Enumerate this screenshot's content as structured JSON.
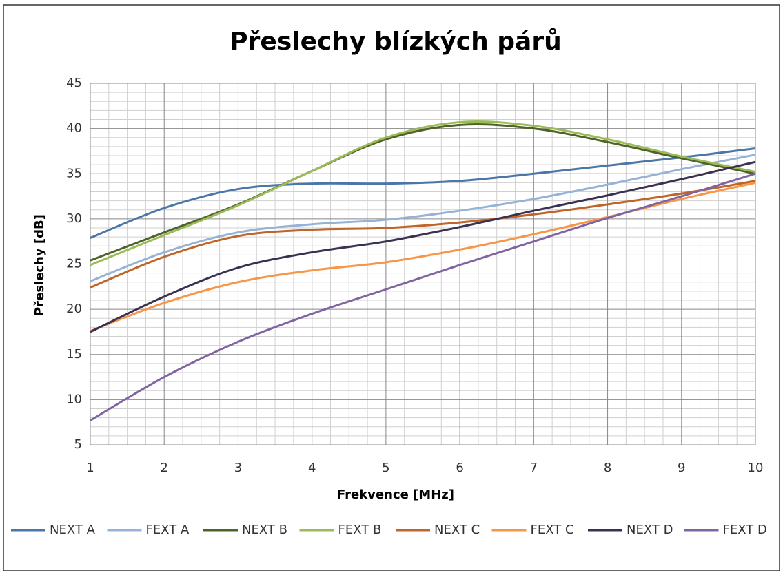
{
  "chart_data": {
    "type": "line",
    "title": "Přeslechy blízkých párů",
    "xlabel": "Frekvence [MHz]",
    "ylabel": "Přeslechy [dB]",
    "x": [
      1,
      2,
      3,
      4,
      5,
      6,
      7,
      8,
      9,
      10
    ],
    "xlim": [
      1,
      10
    ],
    "xticks": [
      1,
      2,
      3,
      4,
      5,
      6,
      7,
      8,
      9,
      10
    ],
    "ylim": [
      5,
      45
    ],
    "yticks": [
      5,
      10,
      15,
      20,
      25,
      30,
      35,
      40,
      45
    ],
    "grid": true,
    "minor_grid": true,
    "legend": "bottom",
    "series": [
      {
        "name": "NEXT A",
        "color": "#4a76a8",
        "values": [
          27.9,
          31.2,
          33.3,
          33.9,
          33.9,
          34.2,
          35.0,
          35.9,
          36.8,
          37.8
        ]
      },
      {
        "name": "FEXT A",
        "color": "#95b3d7",
        "values": [
          23.1,
          26.3,
          28.5,
          29.4,
          29.9,
          30.9,
          32.2,
          33.8,
          35.5,
          37.1
        ]
      },
      {
        "name": "NEXT B",
        "color": "#4f6228",
        "values": [
          25.4,
          28.5,
          31.6,
          35.3,
          38.8,
          40.4,
          40.0,
          38.5,
          36.7,
          35.0
        ]
      },
      {
        "name": "FEXT B",
        "color": "#9bbb59",
        "values": [
          24.9,
          28.2,
          31.5,
          35.3,
          39.0,
          40.7,
          40.3,
          38.8,
          36.9,
          35.2
        ]
      },
      {
        "name": "NEXT C",
        "color": "#c0652a",
        "values": [
          22.4,
          25.8,
          28.1,
          28.8,
          29.0,
          29.6,
          30.5,
          31.6,
          32.8,
          34.2
        ]
      },
      {
        "name": "FEXT C",
        "color": "#f79646",
        "values": [
          17.6,
          20.7,
          23.0,
          24.3,
          25.2,
          26.6,
          28.3,
          30.2,
          32.2,
          34.0
        ]
      },
      {
        "name": "NEXT D",
        "color": "#3b3050",
        "values": [
          17.5,
          21.4,
          24.6,
          26.3,
          27.5,
          29.1,
          30.9,
          32.6,
          34.4,
          36.3
        ]
      },
      {
        "name": "FEXT D",
        "color": "#8064a2",
        "values": [
          7.7,
          12.5,
          16.4,
          19.5,
          22.2,
          24.9,
          27.5,
          30.1,
          32.5,
          35.0
        ]
      }
    ]
  }
}
